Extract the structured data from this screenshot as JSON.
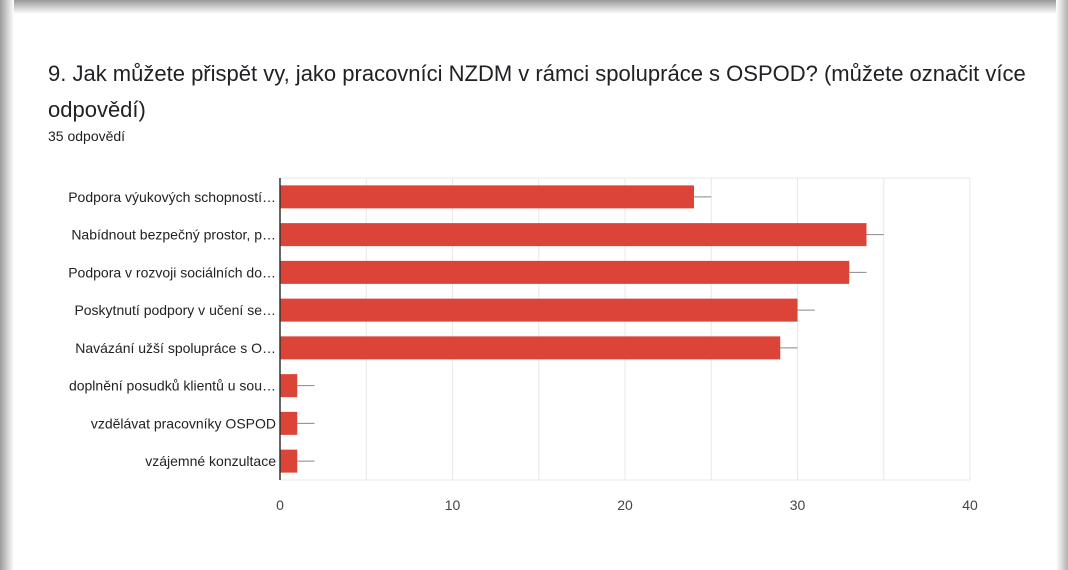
{
  "question": {
    "title": "9. Jak můžete přispět vy, jako pracovníci NZDM v rámci spolupráce s OSPOD? (můžete označit více odpovědí)",
    "response_count": "35 odpovědí"
  },
  "colors": {
    "bar": "#db4437",
    "grid": "#e8e8e8",
    "axis": "#333333",
    "error": "#888888"
  },
  "chart_data": {
    "type": "bar",
    "orientation": "horizontal",
    "categories": [
      "Podpora výukových schopností…",
      "Nabídnout bezpečný prostor, p…",
      "Podpora v rozvoji sociálních do…",
      "Poskytnutí podpory v učení se…",
      "Navázání užší spolupráce s O…",
      "doplnění posudků klientů u sou…",
      "vzdělávat pracovníky OSPOD",
      "vzájemné konzultace"
    ],
    "values": [
      24,
      34,
      33,
      30,
      29,
      1,
      1,
      1
    ],
    "error_upper": [
      25,
      35,
      34,
      31,
      30,
      2,
      2,
      2
    ],
    "xlim": [
      0,
      40
    ],
    "xticks": [
      "0",
      "10",
      "20",
      "30",
      "40"
    ],
    "xtick_values": [
      0,
      10,
      20,
      30,
      40
    ],
    "grid": true
  }
}
